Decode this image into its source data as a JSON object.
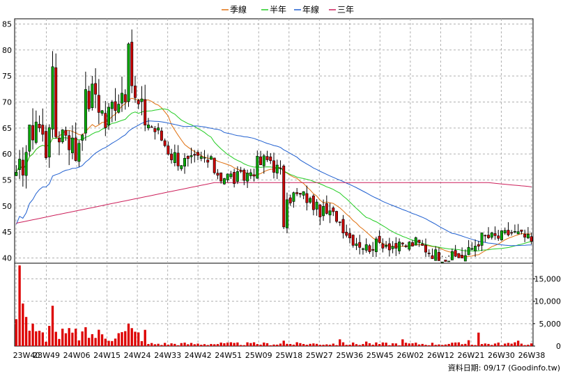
{
  "chart_data": {
    "type": "candlestick",
    "legend": [
      {
        "name": "季線",
        "color": "#e07010"
      },
      {
        "name": "半年",
        "color": "#22cc22"
      },
      {
        "name": "年線",
        "color": "#1f5fd0"
      },
      {
        "name": "三年",
        "color": "#cc1f5a"
      }
    ],
    "price_axis": {
      "min": 39,
      "max": 86,
      "ticks": [
        40,
        45,
        50,
        55,
        60,
        65,
        70,
        75,
        80,
        85
      ]
    },
    "volume_axis": {
      "min": 0,
      "max": 18500,
      "ticks": [
        0,
        5000,
        10000,
        15000
      ],
      "tick_labels": [
        "0",
        "5,000",
        "10,000",
        "15,000"
      ]
    },
    "x_labels": [
      "23W40",
      "23W49",
      "24W06",
      "24W15",
      "24W24",
      "24W33",
      "24W42",
      "24W51",
      "25W09",
      "25W18",
      "25W27",
      "25W36",
      "25W45",
      "26W02",
      "26W12",
      "26W21",
      "26W30",
      "26W38"
    ],
    "weeks": 157,
    "price_keypoints": [
      [
        0,
        54
      ],
      [
        3,
        61
      ],
      [
        6,
        67
      ],
      [
        9,
        61
      ],
      [
        11,
        74
      ],
      [
        12,
        64
      ],
      [
        15,
        65
      ],
      [
        18,
        60
      ],
      [
        21,
        70
      ],
      [
        24,
        72
      ],
      [
        27,
        66
      ],
      [
        30,
        71
      ],
      [
        33,
        73
      ],
      [
        34,
        78
      ],
      [
        36,
        70
      ],
      [
        38,
        68
      ],
      [
        40,
        66
      ],
      [
        43,
        64
      ],
      [
        47,
        60
      ],
      [
        52,
        58
      ],
      [
        57,
        59
      ],
      [
        62,
        56
      ],
      [
        68,
        55
      ],
      [
        73,
        58
      ],
      [
        77,
        59
      ],
      [
        80,
        56
      ],
      [
        81,
        47
      ],
      [
        83,
        52
      ],
      [
        87,
        52
      ],
      [
        92,
        49
      ],
      [
        97,
        48
      ],
      [
        101,
        44
      ],
      [
        106,
        42
      ],
      [
        111,
        43
      ],
      [
        116,
        42
      ],
      [
        121,
        43
      ],
      [
        126,
        41
      ],
      [
        131,
        40
      ],
      [
        136,
        40.5
      ],
      [
        141,
        44
      ],
      [
        146,
        44
      ],
      [
        150,
        45
      ],
      [
        154,
        44
      ],
      [
        156,
        43
      ]
    ],
    "volume_spikes": [
      [
        1,
        18000
      ],
      [
        0,
        6000
      ],
      [
        2,
        9500
      ],
      [
        3,
        6500
      ],
      [
        5,
        5000
      ],
      [
        11,
        9000
      ],
      [
        10,
        4500
      ],
      [
        34,
        5000
      ],
      [
        35,
        4000
      ],
      [
        81,
        1200
      ],
      [
        98,
        1500
      ],
      [
        106,
        1000
      ],
      [
        117,
        1500
      ],
      [
        137,
        1300
      ],
      [
        140,
        3000
      ],
      [
        152,
        1200
      ]
    ],
    "footer": "資料日期: 09/17  (Goodinfo.tw)"
  }
}
